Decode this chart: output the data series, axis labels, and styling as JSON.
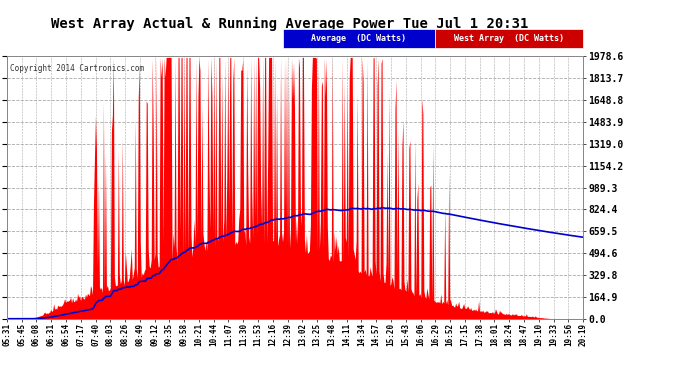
{
  "title": "West Array Actual & Running Average Power Tue Jul 1 20:31",
  "copyright": "Copyright 2014 Cartronics.com",
  "y_max": 1978.6,
  "y_ticks": [
    0.0,
    164.9,
    329.8,
    494.6,
    659.5,
    824.4,
    989.3,
    1154.2,
    1319.0,
    1483.9,
    1648.8,
    1813.7,
    1978.6
  ],
  "bg_color": "#ffffff",
  "plot_bg_color": "#ffffff",
  "grid_color": "#aaaaaa",
  "title_color": "#000000",
  "bar_color": "#ff0000",
  "avg_color": "#0000cc",
  "legend_avg_bg": "#0000cc",
  "legend_west_bg": "#cc0000",
  "legend_labels": [
    "Average  (DC Watts)",
    "West Array  (DC Watts)"
  ],
  "legend_colors": [
    "#0000cc",
    "#cc0000"
  ],
  "x_labels": [
    "05:31",
    "05:45",
    "06:08",
    "06:31",
    "06:54",
    "07:17",
    "07:40",
    "08:03",
    "08:26",
    "08:49",
    "09:12",
    "09:35",
    "09:58",
    "10:21",
    "10:44",
    "11:07",
    "11:30",
    "11:53",
    "12:16",
    "12:39",
    "13:02",
    "13:25",
    "13:48",
    "14:11",
    "14:34",
    "14:57",
    "15:20",
    "15:43",
    "16:06",
    "16:29",
    "16:52",
    "17:15",
    "17:38",
    "18:01",
    "18:24",
    "18:47",
    "19:10",
    "19:33",
    "19:56",
    "20:19"
  ]
}
